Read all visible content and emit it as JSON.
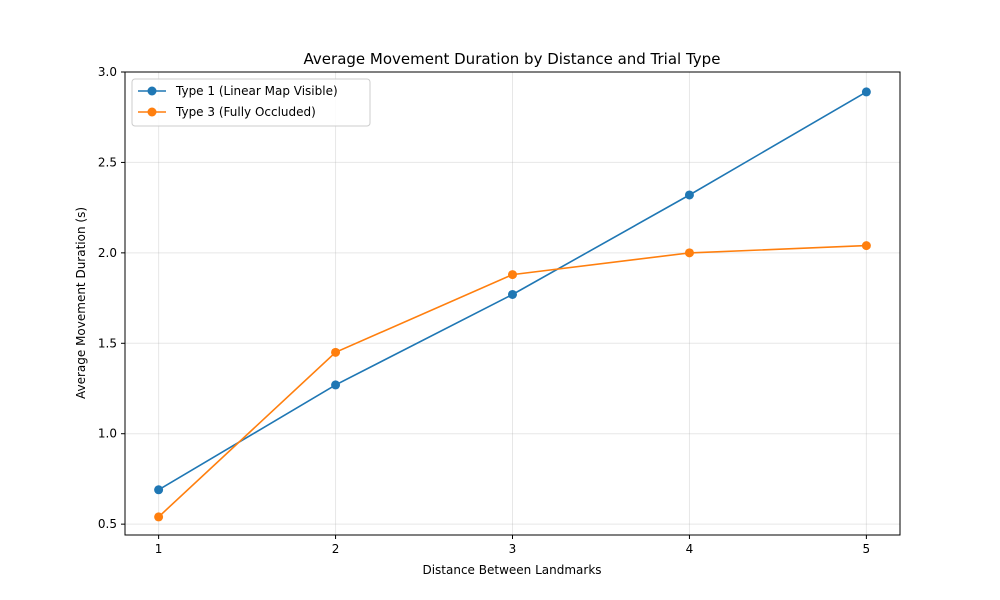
{
  "chart_data": {
    "type": "line",
    "title": "Average Movement Duration by Distance and Trial Type",
    "xlabel": "Distance Between Landmarks",
    "ylabel": "Average Movement Duration (s)",
    "x": [
      1,
      2,
      3,
      4,
      5
    ],
    "xticks": [
      "1",
      "2",
      "3",
      "4",
      "5"
    ],
    "xlim": [
      0.81,
      5.19
    ],
    "ylim": [
      0.44,
      3.0
    ],
    "yticks": [
      "0.5",
      "1.0",
      "1.5",
      "2.0",
      "2.5",
      "3.0"
    ],
    "grid": true,
    "legend_position": "top-left",
    "series": [
      {
        "name": "Type 1 (Linear Map Visible)",
        "color": "#1f77b4",
        "values": [
          0.69,
          1.27,
          1.77,
          2.32,
          2.89
        ]
      },
      {
        "name": "Type 3 (Fully Occluded)",
        "color": "#ff7f0e",
        "values": [
          0.54,
          1.45,
          1.88,
          2.0,
          2.04
        ]
      }
    ]
  }
}
